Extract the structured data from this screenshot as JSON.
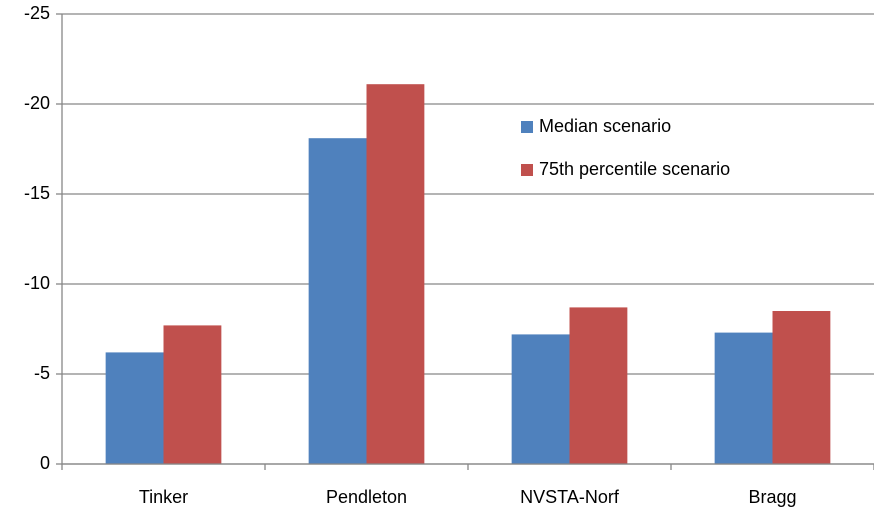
{
  "chart_data": {
    "type": "bar",
    "categories": [
      "Tinker",
      "Pendleton",
      "NVSTA-Norf",
      "Bragg"
    ],
    "series": [
      {
        "name": "Median scenario",
        "color": "#4f81bd",
        "values": [
          -6.2,
          -18.1,
          -7.2,
          -7.3
        ]
      },
      {
        "name": "75th percentile scenario",
        "color": "#c0504d",
        "values": [
          -7.7,
          -21.1,
          -8.7,
          -8.5
        ]
      }
    ],
    "ylim": [
      0,
      -25
    ],
    "yticks": [
      0,
      -5,
      -10,
      -15,
      -20,
      -25
    ],
    "grid": true
  }
}
